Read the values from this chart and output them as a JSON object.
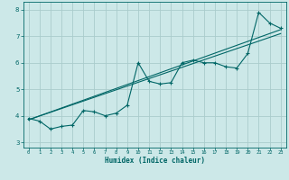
{
  "xlabel": "Humidex (Indice chaleur)",
  "bg_color": "#cce8e8",
  "grid_color": "#aacccc",
  "line_color": "#006666",
  "xlim": [
    -0.5,
    23.5
  ],
  "ylim": [
    2.8,
    8.3
  ],
  "xticks": [
    0,
    1,
    2,
    3,
    4,
    5,
    6,
    7,
    8,
    9,
    10,
    11,
    12,
    13,
    14,
    15,
    16,
    17,
    18,
    19,
    20,
    21,
    22,
    23
  ],
  "yticks": [
    3,
    4,
    5,
    6,
    7,
    8
  ],
  "series1_x": [
    0,
    1,
    2,
    3,
    4,
    5,
    6,
    7,
    8,
    9,
    10,
    11,
    12,
    13,
    14,
    15,
    16,
    17,
    18,
    19,
    20,
    21,
    22,
    23
  ],
  "series1_y": [
    3.9,
    3.8,
    3.5,
    3.6,
    3.65,
    4.2,
    4.15,
    4.0,
    4.1,
    4.4,
    6.0,
    5.3,
    5.2,
    5.25,
    6.0,
    6.1,
    6.0,
    6.0,
    5.85,
    5.8,
    6.35,
    7.9,
    7.5,
    7.3
  ],
  "series2_x": [
    0,
    23
  ],
  "series2_y": [
    3.85,
    7.25
  ],
  "series3_x": [
    0,
    23
  ],
  "series3_y": [
    3.85,
    7.1
  ],
  "marker_size": 3,
  "line_width": 0.8
}
